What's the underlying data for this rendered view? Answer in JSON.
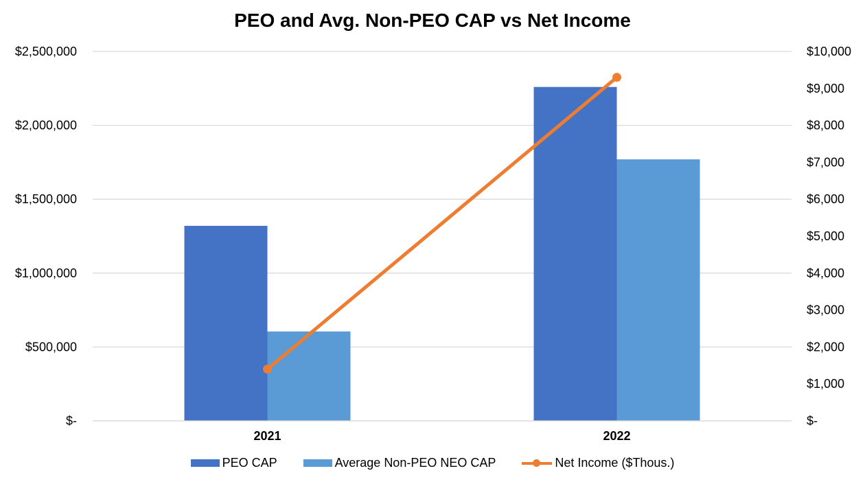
{
  "chart_data": {
    "type": "bar",
    "title": "PEO and Avg. Non-PEO CAP vs Net Income",
    "categories": [
      "2021",
      "2022"
    ],
    "series": [
      {
        "name": "PEO CAP",
        "axis": "left",
        "kind": "bar",
        "color": "#4472C4",
        "values": [
          1320000,
          2260000
        ]
      },
      {
        "name": "Average Non-PEO NEO CAP",
        "axis": "left",
        "kind": "bar",
        "color": "#5B9BD5",
        "values": [
          605000,
          1770000
        ]
      },
      {
        "name": "Net Income ($Thous.)",
        "axis": "right",
        "kind": "line",
        "color": "#ED7D31",
        "values": [
          1400,
          9300
        ]
      }
    ],
    "y_left": {
      "ylim": [
        0,
        2500000
      ],
      "ticks": [
        0,
        500000,
        1000000,
        1500000,
        2000000,
        2500000
      ],
      "tick_labels": [
        "$-",
        "$500,000",
        "$1,000,000",
        "$1,500,000",
        "$2,000,000",
        "$2,500,000"
      ]
    },
    "y_right": {
      "ylim": [
        0,
        10000
      ],
      "ticks": [
        0,
        1000,
        2000,
        3000,
        4000,
        5000,
        6000,
        7000,
        8000,
        9000,
        10000
      ],
      "tick_labels": [
        "$-",
        "$1,000",
        "$2,000",
        "$3,000",
        "$4,000",
        "$5,000",
        "$6,000",
        "$7,000",
        "$8,000",
        "$9,000",
        "$10,000"
      ]
    },
    "grid": true,
    "legend": "bottom"
  }
}
